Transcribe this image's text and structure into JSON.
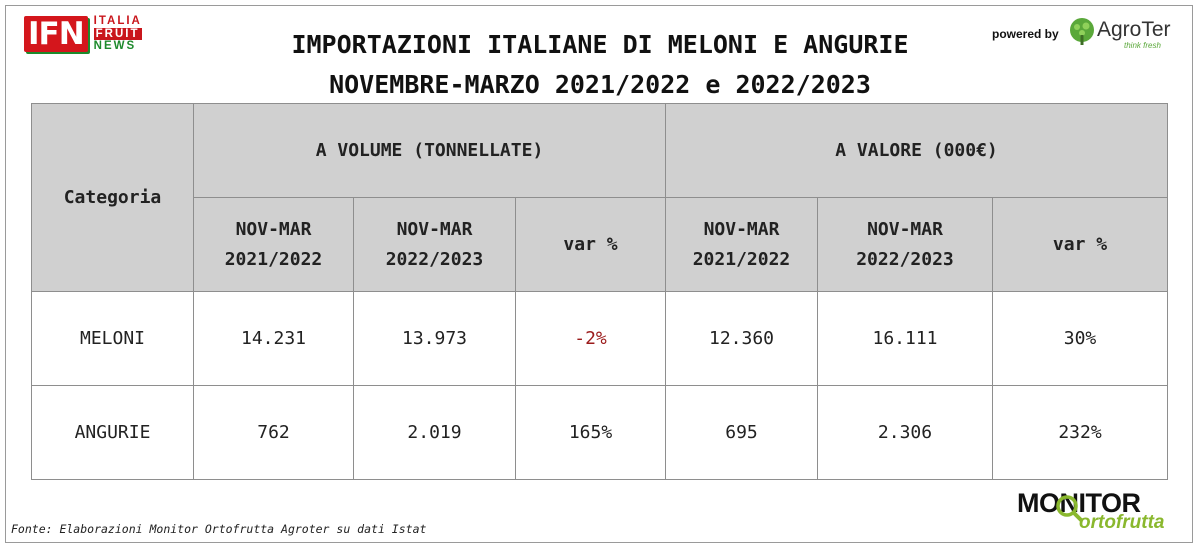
{
  "header": {
    "logo_text": "IFN",
    "logo_words": [
      "ITALIA",
      "FRUIT",
      "NEWS"
    ],
    "powered_by": "powered by",
    "agroter_name": "AgroTer",
    "agroter_tagline": "think fresh",
    "title": "IMPORTAZIONI ITALIANE DI MELONI E ANGURIE",
    "subtitle": "NOVEMBRE-MARZO 2021/2022 e 2022/2023"
  },
  "chart_data": {
    "type": "table",
    "title": "IMPORTAZIONI ITALIANE DI MELONI E ANGURIE",
    "subtitle": "NOVEMBRE-MARZO 2021/2022 e 2022/2023",
    "category_header": "Categoria",
    "groups": [
      {
        "name": "A VOLUME (TONNELLATE)",
        "columns": [
          "NOV-MAR\n2021/2022",
          "NOV-MAR\n2022/2023",
          "var %"
        ]
      },
      {
        "name": "A VALORE (000€)",
        "columns": [
          "NOV-MAR\n2021/2022",
          "NOV-MAR\n2022/2023",
          "var %"
        ]
      }
    ],
    "rows": [
      {
        "category": "MELONI",
        "values": [
          "14.231",
          "13.973",
          "-2%",
          "12.360",
          "16.111",
          "30%"
        ]
      },
      {
        "category": "ANGURIE",
        "values": [
          "762",
          "2.019",
          "165%",
          "695",
          "2.306",
          "232%"
        ]
      }
    ],
    "negative_color": "#9b1b1b",
    "header_fill": "#d0d0d0"
  },
  "footer": {
    "source": "Fonte: Elaborazioni Monitor Ortofrutta Agroter su dati Istat",
    "monitor_top": "MONITOR",
    "monitor_bottom": "ortofrutta"
  },
  "colors": {
    "ifn_red": "#d4161c",
    "ifn_green": "#1d8a2c",
    "agroter_green": "#5aa83a",
    "monitor_green": "#8ab82e"
  }
}
